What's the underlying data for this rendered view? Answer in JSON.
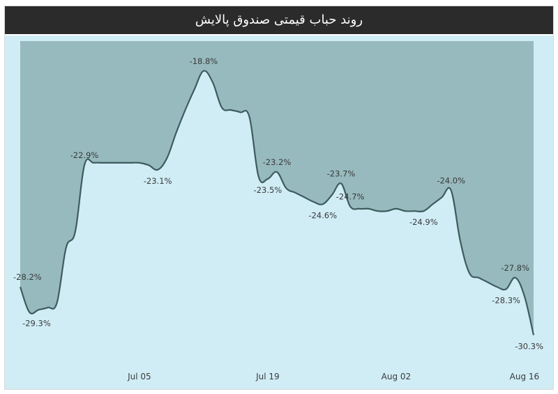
{
  "chart_data": {
    "type": "area",
    "title": "روند حباب قیمتی صندوق پالایش",
    "xlabel": "",
    "ylabel": "",
    "x_ticks": [
      "Jul 05",
      "Jul 19",
      "Aug 02",
      "Aug 16"
    ],
    "x_tick_days": [
      13,
      27,
      41,
      55
    ],
    "ylim": [
      -31.5,
      -17.5
    ],
    "grid": false,
    "legend": "none",
    "colors": {
      "plot_background": "#d0edf6",
      "area_fill": "#97babe",
      "line": "#3e5b5e",
      "text": "#3a3a3a"
    },
    "series": [
      {
        "x": [
          0,
          1,
          2,
          3,
          4,
          5,
          6,
          7,
          8,
          9,
          10,
          11,
          12,
          13,
          14,
          15,
          16,
          17,
          18,
          19,
          20,
          21,
          22,
          23,
          24,
          25,
          26,
          27,
          28,
          29,
          30,
          31,
          32,
          33,
          34,
          35,
          36,
          37,
          38,
          39,
          40,
          41,
          42,
          43,
          44,
          45,
          46,
          47,
          48,
          49,
          50,
          51,
          52,
          53,
          54,
          55,
          56
        ],
        "values": [
          -28.2,
          -29.3,
          -29.2,
          -29.1,
          -28.9,
          -26.5,
          -25.8,
          -22.9,
          -22.8,
          -22.8,
          -22.8,
          -22.8,
          -22.8,
          -22.8,
          -22.9,
          -23.1,
          -22.6,
          -21.5,
          -20.5,
          -19.6,
          -18.8,
          -19.3,
          -20.4,
          -20.5,
          -20.6,
          -20.8,
          -23.4,
          -23.5,
          -23.2,
          -23.9,
          -24.1,
          -24.3,
          -24.5,
          -24.6,
          -24.2,
          -23.7,
          -24.7,
          -24.8,
          -24.8,
          -24.9,
          -24.9,
          -24.8,
          -24.9,
          -24.9,
          -24.9,
          -24.6,
          -24.3,
          -24.0,
          -26.2,
          -27.6,
          -27.8,
          -28.0,
          -28.2,
          -28.3,
          -27.8,
          -28.6,
          -30.3
        ]
      }
    ],
    "annotations": [
      {
        "x": 0,
        "y": -28.2,
        "text": "-28.2%",
        "pos": "above"
      },
      {
        "x": 1,
        "y": -29.3,
        "text": "-29.3%",
        "pos": "below"
      },
      {
        "x": 7,
        "y": -22.9,
        "text": "-22.9%",
        "pos": "above"
      },
      {
        "x": 15,
        "y": -23.1,
        "text": "-23.1%",
        "pos": "below"
      },
      {
        "x": 20,
        "y": -18.8,
        "text": "-18.8%",
        "pos": "above"
      },
      {
        "x": 28,
        "y": -23.2,
        "text": "-23.2%",
        "pos": "above"
      },
      {
        "x": 27,
        "y": -23.5,
        "text": "-23.5%",
        "pos": "below"
      },
      {
        "x": 33,
        "y": -24.6,
        "text": "-24.6%",
        "pos": "below"
      },
      {
        "x": 35,
        "y": -23.7,
        "text": "-23.7%",
        "pos": "above"
      },
      {
        "x": 36,
        "y": -24.7,
        "text": "-24.7%",
        "pos": "above"
      },
      {
        "x": 44,
        "y": -24.9,
        "text": "-24.9%",
        "pos": "below"
      },
      {
        "x": 47,
        "y": -24.0,
        "text": "-24.0%",
        "pos": "above"
      },
      {
        "x": 54,
        "y": -27.8,
        "text": "-27.8%",
        "pos": "above"
      },
      {
        "x": 53,
        "y": -28.3,
        "text": "-28.3%",
        "pos": "below"
      },
      {
        "x": 56,
        "y": -30.3,
        "text": "-30.3%",
        "pos": "below"
      }
    ]
  }
}
